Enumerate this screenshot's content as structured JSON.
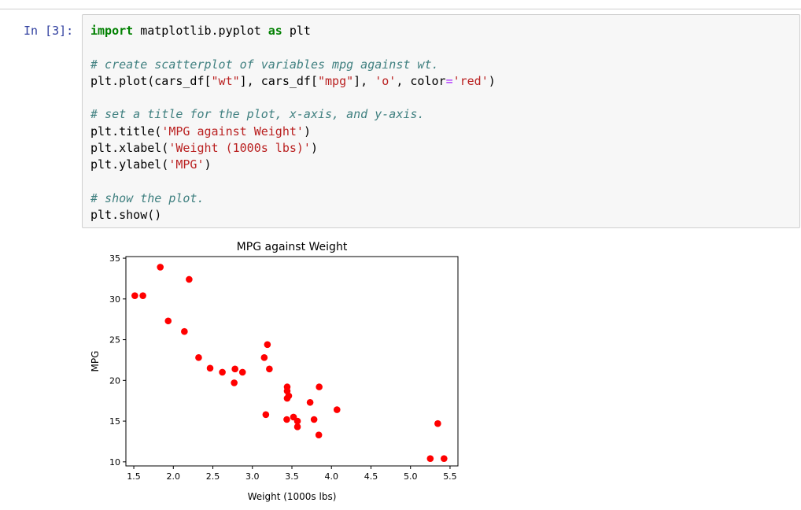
{
  "cell": {
    "prompt": "In [3]:",
    "code": {
      "import_kw": "import",
      "import_mod": " matplotlib.pyplot ",
      "as_kw": "as",
      "import_alias": " plt",
      "comment1": "# create scatterplot of variables mpg against wt.",
      "plot_head": "plt.plot(cars_df[",
      "plot_arg1": "\"wt\"",
      "plot_mid1": "], cars_df[",
      "plot_arg2": "\"mpg\"",
      "plot_mid2": "], ",
      "plot_arg3": "'o'",
      "plot_mid3": ", color",
      "plot_eq": "=",
      "plot_arg4": "'red'",
      "plot_tail": ")",
      "comment2": "# set a title for the plot, x-axis, and y-axis.",
      "title_head": "plt.title(",
      "title_arg": "'MPG against Weight'",
      "title_tail": ")",
      "xlabel_head": "plt.xlabel(",
      "xlabel_arg": "'Weight (1000s lbs)'",
      "xlabel_tail": ")",
      "ylabel_head": "plt.ylabel(",
      "ylabel_arg": "'MPG'",
      "ylabel_tail": ")",
      "comment3": "# show the plot.",
      "show_line": "plt.show()"
    }
  },
  "chart_data": {
    "type": "scatter",
    "title": "MPG against Weight",
    "xlabel": "Weight (1000s lbs)",
    "ylabel": "MPG",
    "xlim": [
      1.4,
      5.6
    ],
    "ylim": [
      9.5,
      35.2
    ],
    "xticks": [
      "1.5",
      "2.0",
      "2.5",
      "3.0",
      "3.5",
      "4.0",
      "4.5",
      "5.0",
      "5.5"
    ],
    "yticks": [
      "10",
      "15",
      "20",
      "25",
      "30",
      "35"
    ],
    "grid": false,
    "marker_color": "#ff0000",
    "x": [
      2.62,
      2.875,
      2.32,
      3.215,
      3.44,
      3.46,
      3.57,
      3.19,
      3.15,
      3.44,
      3.44,
      4.07,
      3.73,
      3.78,
      5.25,
      5.424,
      5.345,
      2.2,
      1.615,
      1.835,
      2.465,
      3.52,
      3.435,
      3.84,
      3.845,
      1.935,
      2.14,
      1.513,
      3.17,
      2.77,
      3.57,
      2.78
    ],
    "y": [
      21.0,
      21.0,
      22.8,
      21.4,
      18.7,
      18.1,
      14.3,
      24.4,
      22.8,
      19.2,
      17.8,
      16.4,
      17.3,
      15.2,
      10.4,
      10.4,
      14.7,
      32.4,
      30.4,
      33.9,
      21.5,
      15.5,
      15.2,
      13.3,
      19.2,
      27.3,
      26.0,
      30.4,
      15.8,
      19.7,
      15.0,
      21.4
    ]
  }
}
